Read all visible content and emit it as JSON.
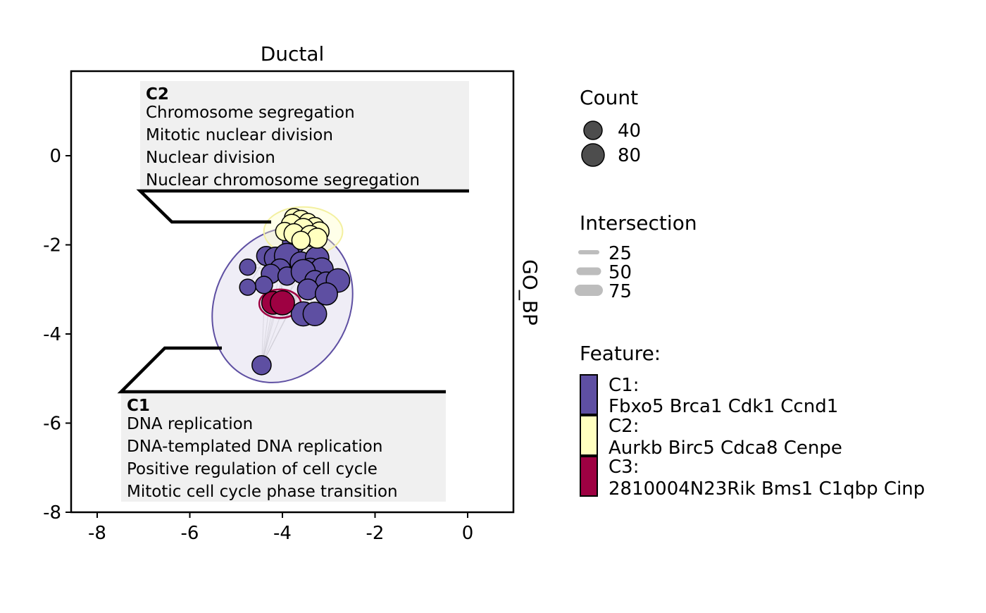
{
  "chart_data": {
    "type": "scatter",
    "title": "Ductal",
    "right_strip_label": "GO_BP",
    "xlim": [
      -8.6,
      1.0
    ],
    "ylim": [
      -8.0,
      1.9
    ],
    "xticks": [
      -8,
      -6,
      -4,
      -2,
      0
    ],
    "yticks": [
      0,
      -2,
      -4,
      -6,
      -8
    ],
    "x_tick_labels": [
      "-8",
      "-6",
      "-4",
      "-2",
      "0"
    ],
    "y_tick_labels": [
      "0",
      "-2",
      "-4",
      "-6",
      "-8"
    ],
    "grid": false,
    "legend_position": "right",
    "colors": {
      "C1": "#5E4FA2",
      "C2": "#FFFFBF",
      "C3": "#9E0142",
      "edge": "#BBBBBB"
    },
    "clusters": [
      {
        "name": "C1",
        "color": "#5E4FA2",
        "hull": {
          "cx": -4.0,
          "cy": -3.35,
          "rx": 1.45,
          "ry": 1.8,
          "angle_deg": 28
        },
        "points": [
          {
            "x": -3.75,
            "y": -1.95,
            "count": 60
          },
          {
            "x": -4.35,
            "y": -2.25,
            "count": 35
          },
          {
            "x": -4.15,
            "y": -2.3,
            "count": 55
          },
          {
            "x": -3.9,
            "y": -2.25,
            "count": 80
          },
          {
            "x": -3.6,
            "y": -2.4,
            "count": 50
          },
          {
            "x": -3.25,
            "y": -2.3,
            "count": 65
          },
          {
            "x": -4.05,
            "y": -2.55,
            "count": 45
          },
          {
            "x": -3.4,
            "y": -2.55,
            "count": 55
          },
          {
            "x": -3.15,
            "y": -2.55,
            "count": 60
          },
          {
            "x": -4.75,
            "y": -2.5,
            "count": 20
          },
          {
            "x": -4.25,
            "y": -2.65,
            "count": 35
          },
          {
            "x": -3.9,
            "y": -2.7,
            "count": 30
          },
          {
            "x": -3.55,
            "y": -2.6,
            "count": 70
          },
          {
            "x": -3.3,
            "y": -2.8,
            "count": 40
          },
          {
            "x": -3.05,
            "y": -2.85,
            "count": 50
          },
          {
            "x": -2.8,
            "y": -2.8,
            "count": 65
          },
          {
            "x": -4.4,
            "y": -2.9,
            "count": 25
          },
          {
            "x": -4.75,
            "y": -2.95,
            "count": 20
          },
          {
            "x": -3.45,
            "y": -3.0,
            "count": 45
          },
          {
            "x": -3.05,
            "y": -3.1,
            "count": 55
          },
          {
            "x": -3.55,
            "y": -3.55,
            "count": 70
          },
          {
            "x": -3.3,
            "y": -3.55,
            "count": 65
          },
          {
            "x": -4.45,
            "y": -4.7,
            "count": 35
          }
        ]
      },
      {
        "name": "C2",
        "color": "#FFFFBF",
        "hull": {
          "cx": -3.55,
          "cy": -1.7,
          "rx": 0.85,
          "ry": 0.55,
          "angle_deg": 0
        },
        "points": [
          {
            "x": -3.75,
            "y": -1.4,
            "count": 35
          },
          {
            "x": -3.6,
            "y": -1.45,
            "count": 40
          },
          {
            "x": -3.45,
            "y": -1.5,
            "count": 30
          },
          {
            "x": -3.3,
            "y": -1.6,
            "count": 35
          },
          {
            "x": -3.8,
            "y": -1.55,
            "count": 45
          },
          {
            "x": -3.55,
            "y": -1.65,
            "count": 50
          },
          {
            "x": -3.2,
            "y": -1.7,
            "count": 35
          },
          {
            "x": -3.95,
            "y": -1.7,
            "count": 30
          },
          {
            "x": -3.75,
            "y": -1.75,
            "count": 40
          },
          {
            "x": -3.4,
            "y": -1.8,
            "count": 45
          },
          {
            "x": -3.25,
            "y": -1.85,
            "count": 40
          },
          {
            "x": -3.6,
            "y": -1.9,
            "count": 30
          }
        ]
      },
      {
        "name": "C3",
        "color": "#9E0142",
        "hull": {
          "cx": -4.05,
          "cy": -3.32,
          "rx": 0.45,
          "ry": 0.32,
          "angle_deg": 0
        },
        "points": [
          {
            "x": -4.2,
            "y": -3.3,
            "count": 60
          },
          {
            "x": -4.0,
            "y": -3.3,
            "count": 70
          }
        ]
      }
    ],
    "annotations": [
      {
        "cluster": "C2",
        "heading": "C2",
        "terms": [
          "Chromosome segregation",
          "Mitotic nuclear division",
          "Nuclear division",
          "Nuclear chromosome segregation"
        ]
      },
      {
        "cluster": "C1",
        "heading": "C1",
        "terms": [
          "DNA replication",
          "DNA-templated DNA replication",
          "Positive regulation of cell cycle",
          "Mitotic cell cycle phase transition"
        ]
      }
    ]
  },
  "legends": {
    "count": {
      "title": "Count",
      "items": [
        {
          "label": "40",
          "value": 40
        },
        {
          "label": "80",
          "value": 80
        }
      ]
    },
    "intersection": {
      "title": "Intersection",
      "items": [
        {
          "label": "25",
          "value": 25
        },
        {
          "label": "50",
          "value": 50
        },
        {
          "label": "75",
          "value": 75
        }
      ]
    },
    "feature": {
      "title": "Feature:",
      "items": [
        {
          "key": "C1",
          "label": "C1:",
          "genes": "Fbxo5 Brca1 Cdk1 Ccnd1",
          "color": "#5E4FA2"
        },
        {
          "key": "C2",
          "label": "C2:",
          "genes": "Aurkb Birc5 Cdca8 Cenpe",
          "color": "#FFFFBF"
        },
        {
          "key": "C3",
          "label": "C3:",
          "genes": "2810004N23Rik Bms1 C1qbp Cinp",
          "color": "#9E0142"
        }
      ]
    }
  }
}
